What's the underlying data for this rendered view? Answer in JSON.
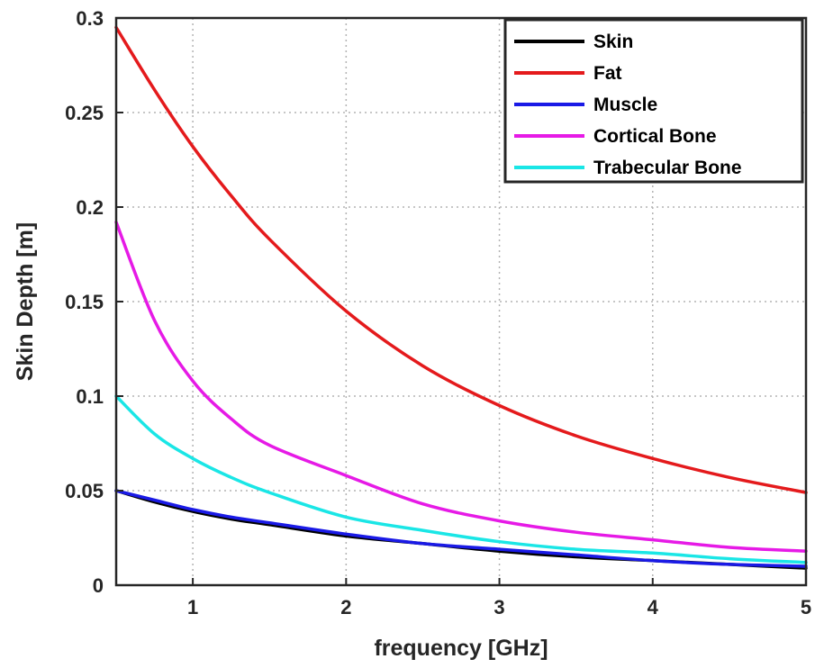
{
  "chart_data": {
    "type": "line",
    "title": "",
    "xlabel": "frequency [GHz]",
    "ylabel": "Skin Depth [m]",
    "xlim": [
      0.5,
      5
    ],
    "ylim": [
      0,
      0.3
    ],
    "xticks": [
      1,
      2,
      3,
      4,
      5
    ],
    "yticks": [
      0,
      0.05,
      0.1,
      0.15,
      0.2,
      0.25,
      0.3
    ],
    "xtick_labels": [
      "1",
      "2",
      "3",
      "4",
      "5"
    ],
    "ytick_labels": [
      "0",
      "0.05",
      "0.1",
      "0.15",
      "0.2",
      "0.25",
      "0.3"
    ],
    "grid": true,
    "legend_position": "top-right",
    "x": [
      0.5,
      0.75,
      1.0,
      1.25,
      1.5,
      2.0,
      2.5,
      3.0,
      3.5,
      4.0,
      4.5,
      5.0
    ],
    "series": [
      {
        "name": "Skin",
        "color": "#000000",
        "values": [
          0.05,
          0.044,
          0.039,
          0.035,
          0.032,
          0.026,
          0.022,
          0.018,
          0.015,
          0.013,
          0.011,
          0.009
        ]
      },
      {
        "name": "Fat",
        "color": "#e41a1c",
        "values": [
          0.295,
          0.262,
          0.232,
          0.206,
          0.183,
          0.145,
          0.116,
          0.095,
          0.079,
          0.067,
          0.057,
          0.049
        ]
      },
      {
        "name": "Muscle",
        "color": "#1a1ae6",
        "values": [
          0.05,
          0.045,
          0.04,
          0.036,
          0.033,
          0.027,
          0.022,
          0.019,
          0.016,
          0.013,
          0.011,
          0.01
        ]
      },
      {
        "name": "Cortical Bone",
        "color": "#e61ae6",
        "values": [
          0.192,
          0.14,
          0.108,
          0.088,
          0.074,
          0.058,
          0.043,
          0.034,
          0.028,
          0.024,
          0.02,
          0.018
        ]
      },
      {
        "name": "Trabecular Bone",
        "color": "#1ae6e6",
        "values": [
          0.1,
          0.08,
          0.067,
          0.057,
          0.049,
          0.036,
          0.029,
          0.023,
          0.019,
          0.017,
          0.014,
          0.012
        ]
      }
    ]
  }
}
